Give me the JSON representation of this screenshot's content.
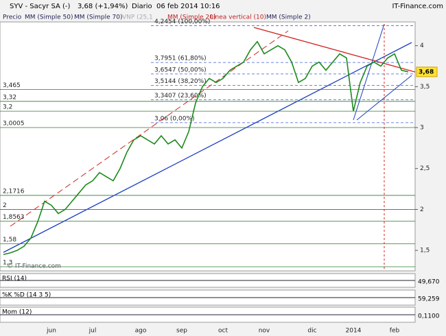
{
  "header": {
    "title": "SYV - Sacyr SA (-)",
    "change": "3,68 (+1,94%)",
    "period": "Diario",
    "datetime": "06 feb 2014 10:16",
    "brand": "IT-Finance.com"
  },
  "legend": [
    "Precio",
    "MM (Simple 50)",
    "MM (Simple 70)",
    "VNP (25,1",
    "MM (Simple 20)",
    "Línea vertical (10)",
    "MM (Simple 2)"
  ],
  "chart_data": {
    "type": "line",
    "color": "#1a8a1a",
    "categories": [
      null,
      null,
      null,
      null,
      null,
      null,
      null,
      "jun",
      null,
      null,
      null,
      null,
      null,
      "jul",
      null,
      null,
      null,
      null,
      null,
      null,
      "ago",
      null,
      null,
      null,
      null,
      null,
      "sep",
      null,
      null,
      null,
      null,
      null,
      "oct",
      null,
      null,
      null,
      null,
      null,
      "nov",
      null,
      null,
      null,
      null,
      null,
      null,
      "dic",
      null,
      null,
      null,
      null,
      null,
      "2014",
      null,
      null,
      null,
      null,
      null,
      "feb",
      null,
      null
    ],
    "values": [
      1.45,
      1.47,
      1.5,
      1.55,
      1.65,
      1.85,
      2.1,
      2.05,
      1.95,
      2.0,
      2.1,
      2.2,
      2.3,
      2.35,
      2.45,
      2.4,
      2.35,
      2.5,
      2.7,
      2.85,
      2.9,
      2.85,
      2.8,
      2.9,
      2.8,
      2.85,
      2.75,
      2.95,
      3.3,
      3.5,
      3.6,
      3.55,
      3.6,
      3.7,
      3.75,
      3.8,
      3.95,
      4.05,
      3.9,
      3.95,
      4.0,
      3.95,
      3.8,
      3.55,
      3.6,
      3.75,
      3.8,
      3.7,
      3.8,
      3.9,
      3.85,
      3.2,
      3.55,
      3.75,
      3.8,
      3.75,
      3.85,
      3.9,
      3.7,
      3.68
    ],
    "ylim": [
      1.25,
      4.29
    ],
    "yticks": [
      4,
      {
        "value": 3.5,
        "label": "3,5"
      },
      3,
      {
        "value": 2.5,
        "label": "2,5"
      },
      2,
      {
        "value": 1.5,
        "label": "1,5"
      }
    ],
    "levels": [
      {
        "value": 3.465,
        "label": "3,465"
      },
      {
        "value": 3.32,
        "label": "3,32"
      },
      {
        "value": 3.2,
        "label": "3,2"
      },
      {
        "value": 3.0005,
        "label": "3,0005"
      },
      {
        "value": 2.1716,
        "label": "2,1716"
      },
      {
        "value": 2,
        "label": "2"
      },
      {
        "value": 1.8563,
        "label": "1,8563"
      },
      {
        "value": 1.58,
        "label": "1,58"
      },
      {
        "value": 1.3,
        "label": "1,3"
      }
    ],
    "fib": [
      {
        "value": 4.2454,
        "label": "4,2454 (100,00%)"
      },
      {
        "value": 3.7951,
        "label": "3,7951 (61,80%)"
      },
      {
        "value": 3.6547,
        "label": "3,6547 (50,00%)"
      },
      {
        "value": 3.5144,
        "label": "3,5144 (38,20%)"
      },
      {
        "value": 3.3407,
        "label": "3,3407 (23,60%)"
      },
      {
        "value": 3.06,
        "label": "3,06 (0,00%)"
      }
    ],
    "last": {
      "value": 3.68,
      "label": "3,68"
    },
    "watermark": "© IT-Finance.com"
  },
  "panels": [
    {
      "label": "RSI (14)",
      "value": "49,670"
    },
    {
      "label": "%K  %D (14 3 5)",
      "value": "59,259"
    },
    {
      "label": "Mom (12)",
      "value": "0,1100"
    }
  ]
}
